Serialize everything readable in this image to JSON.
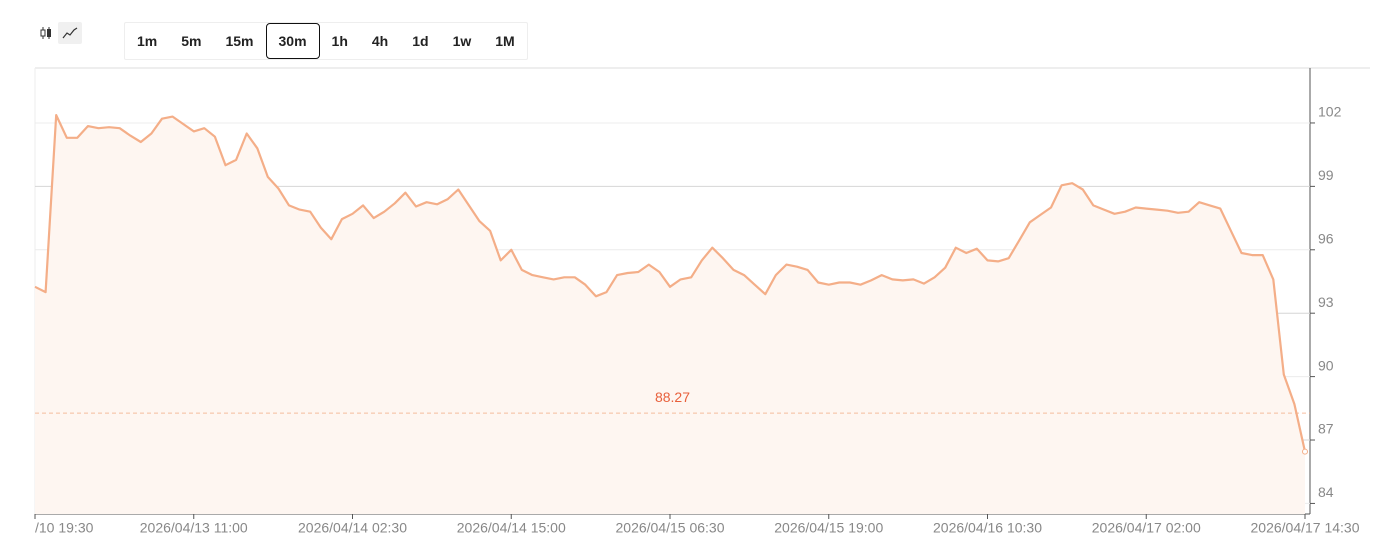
{
  "toolbar": {
    "intervals": [
      "1m",
      "5m",
      "15m",
      "30m",
      "1h",
      "4h",
      "1d",
      "1w",
      "1M"
    ],
    "selected_index": 3
  },
  "chart_data": {
    "type": "line",
    "categories": [
      "/10 19:30",
      null,
      null,
      null,
      null,
      null,
      null,
      null,
      null,
      null,
      null,
      null,
      null,
      null,
      null,
      "2026/04/13 11:00",
      null,
      null,
      null,
      null,
      null,
      null,
      null,
      null,
      null,
      null,
      null,
      null,
      null,
      null,
      "2026/04/14 02:30",
      null,
      null,
      null,
      null,
      null,
      null,
      null,
      null,
      null,
      null,
      null,
      null,
      null,
      null,
      "2026/04/14 15:00",
      null,
      null,
      null,
      null,
      null,
      null,
      null,
      null,
      null,
      null,
      null,
      null,
      null,
      null,
      "2026/04/15 06:30",
      null,
      null,
      null,
      null,
      null,
      null,
      null,
      null,
      null,
      null,
      null,
      null,
      null,
      null,
      "2026/04/15 19:00",
      null,
      null,
      null,
      null,
      null,
      null,
      null,
      null,
      null,
      null,
      null,
      null,
      null,
      null,
      "2026/04/16 10:30",
      null,
      null,
      null,
      null,
      null,
      null,
      null,
      null,
      null,
      null,
      null,
      null,
      null,
      null,
      "2026/04/17 02:00",
      null,
      null,
      null,
      null,
      null,
      null,
      null,
      null,
      null,
      null,
      null,
      null,
      null,
      null,
      "2026/04/17 14:30"
    ],
    "values": [
      94.25,
      94.0,
      102.37,
      101.3,
      101.3,
      101.85,
      101.75,
      101.8,
      101.75,
      101.4,
      101.1,
      101.5,
      102.2,
      102.3,
      101.95,
      101.6,
      101.75,
      101.35,
      100.0,
      100.25,
      101.5,
      100.8,
      99.45,
      98.9,
      98.1,
      97.9,
      97.8,
      97.05,
      96.5,
      97.45,
      97.7,
      98.1,
      97.5,
      97.8,
      98.2,
      98.7,
      98.05,
      98.25,
      98.15,
      98.4,
      98.85,
      98.1,
      97.35,
      96.9,
      95.5,
      96.0,
      95.05,
      94.8,
      94.7,
      94.6,
      94.7,
      94.7,
      94.35,
      93.8,
      94.0,
      94.8,
      94.9,
      94.95,
      95.3,
      94.95,
      94.25,
      94.6,
      94.7,
      95.5,
      96.1,
      95.6,
      95.05,
      94.8,
      94.35,
      93.9,
      94.8,
      95.3,
      95.2,
      95.05,
      94.45,
      94.35,
      94.45,
      94.45,
      94.35,
      94.55,
      94.8,
      94.6,
      94.55,
      94.6,
      94.4,
      94.7,
      95.15,
      96.1,
      95.85,
      96.05,
      95.5,
      95.45,
      95.6,
      96.45,
      97.3,
      97.65,
      98.0,
      99.05,
      99.15,
      98.85,
      98.1,
      97.9,
      97.7,
      97.8,
      98.0,
      97.95,
      97.9,
      97.85,
      97.75,
      97.8,
      98.25,
      98.1,
      97.95,
      96.9,
      95.85,
      95.75,
      95.75,
      94.6,
      90.1,
      88.7,
      86.45
    ],
    "color": "#f4ae88",
    "area_color": "#fef6f1",
    "ylim": [
      83.5,
      104.6
    ],
    "yticks": [
      84,
      87,
      90,
      93,
      96,
      99,
      102
    ],
    "grid": true,
    "reference_line": 88.27,
    "reference_color": "#e8603c"
  }
}
